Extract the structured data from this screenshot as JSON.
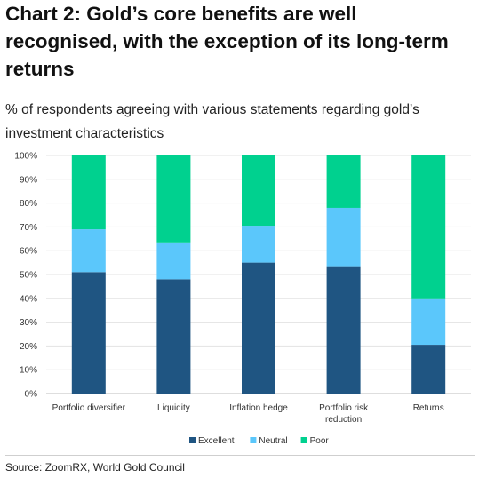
{
  "title": "Chart 2: Gold’s core benefits are well recognised, with the exception of its long-term returns",
  "subtitle": "% of respondents agreeing with various statements regarding gold’s investment characteristics",
  "source": "Source: ZoomRX, World Gold Council",
  "chart_data": {
    "type": "bar",
    "stacked": true,
    "title": "",
    "xlabel": "",
    "ylabel": "",
    "ylim": [
      0,
      100
    ],
    "yticks": [
      "0%",
      "10%",
      "20%",
      "30%",
      "40%",
      "50%",
      "60%",
      "70%",
      "80%",
      "90%",
      "100%"
    ],
    "grid": true,
    "legend_position": "bottom",
    "categories": [
      [
        "Portfolio diversifier"
      ],
      [
        "Liquidity"
      ],
      [
        "Inflation hedge"
      ],
      [
        "Portfolio risk",
        "reduction"
      ],
      [
        "Returns"
      ]
    ],
    "series": [
      {
        "name": "Excellent",
        "color": "#1f5582",
        "values": [
          51,
          48,
          55,
          53.5,
          20.5
        ]
      },
      {
        "name": "Neutral",
        "color": "#5bc7fb",
        "values": [
          18,
          15.5,
          15.5,
          24.5,
          19.5
        ]
      },
      {
        "name": "Poor",
        "color": "#00d18f",
        "values": [
          31,
          36.5,
          29.5,
          22,
          60
        ]
      }
    ]
  }
}
